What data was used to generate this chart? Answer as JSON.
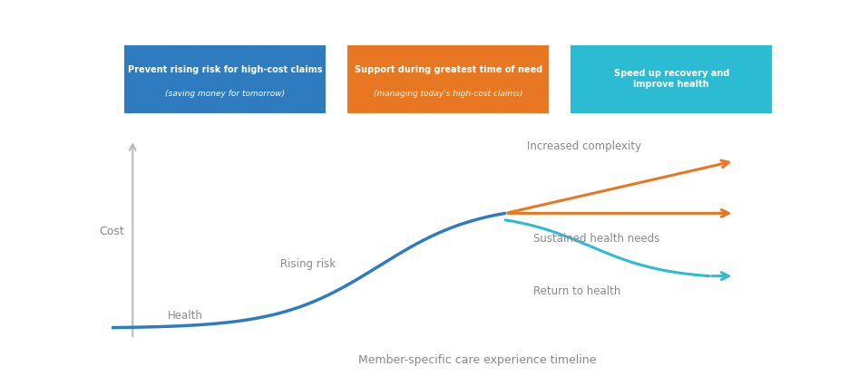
{
  "bg_color": "#ffffff",
  "box1_color": "#2e7bbf",
  "box2_color": "#e87722",
  "box3_color": "#2bbcd4",
  "box1_line1": "Prevent rising risk for high-cost claims",
  "box1_line2": "(saving money for tomorrow)",
  "box2_line1": "Support during greatest time of need",
  "box2_line2": "(managing today's high-cost claims)",
  "box3_line1": "Speed up recovery and\nimprove health",
  "box3_line2": "",
  "main_curve_color": "#2e7bbf",
  "orange_arrow_color": "#e87722",
  "cyan_curve_color": "#2bbcd4",
  "axis_color": "#bbbbbb",
  "text_color": "#888888",
  "cost_label": "Cost",
  "xlabel": "Member-specific care experience timeline",
  "label_health": "Health",
  "label_rising_risk": "Rising risk",
  "label_increased_complexity": "Increased complexity",
  "label_sustained_health": "Sustained health needs",
  "label_return_to_health": "Return to health"
}
